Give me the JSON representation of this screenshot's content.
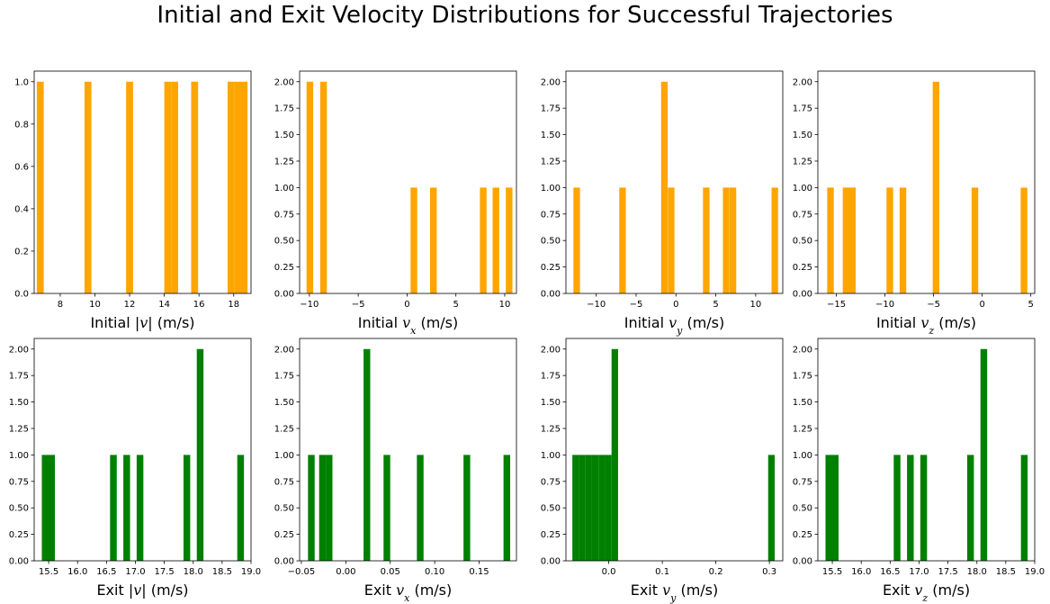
{
  "suptitle": "Initial and Exit Velocity Distributions for Successful Trajectories",
  "chart_data": [
    {
      "type": "bar",
      "color": "#FFA500",
      "xlabel": "Initial |v| (m/s)",
      "xlabel_parts": [
        [
          "Initial |",
          false
        ],
        [
          "v",
          true
        ],
        [
          "| (m/s)",
          false
        ]
      ],
      "xlim": [
        6.5,
        19.0
      ],
      "ylim": [
        0,
        1.05
      ],
      "xticks": [
        8,
        10,
        12,
        14,
        16,
        18
      ],
      "xtick_labels": [
        "8",
        "10",
        "12",
        "14",
        "16",
        "18"
      ],
      "yticks": [
        0,
        0.2,
        0.4,
        0.6,
        0.8,
        1.0
      ],
      "ytick_labels": [
        "0.0",
        "0.2",
        "0.4",
        "0.6",
        "0.8",
        "1.0"
      ],
      "bin_width": 0.4,
      "bins": [
        [
          6.85,
          1
        ],
        [
          9.6,
          1
        ],
        [
          12.0,
          1
        ],
        [
          14.2,
          1
        ],
        [
          14.6,
          1
        ],
        [
          15.75,
          1
        ],
        [
          17.85,
          1
        ],
        [
          18.25,
          1
        ],
        [
          18.6,
          1
        ]
      ]
    },
    {
      "type": "bar",
      "color": "#FFA500",
      "xlabel": "Initial vx (m/s)",
      "xlabel_parts": [
        [
          "Initial ",
          false
        ],
        [
          "v",
          true
        ],
        [
          "x",
          "sub"
        ],
        [
          " (m/s)",
          false
        ]
      ],
      "xlim": [
        -11.0,
        11.2
      ],
      "ylim": [
        0,
        2.1
      ],
      "xticks": [
        -10,
        -5,
        0,
        5,
        10
      ],
      "xtick_labels": [
        "−10",
        "−5",
        "0",
        "5",
        "10"
      ],
      "yticks": [
        0,
        0.25,
        0.5,
        0.75,
        1.0,
        1.25,
        1.5,
        1.75,
        2.0
      ],
      "ytick_labels": [
        "0.00",
        "0.25",
        "0.50",
        "0.75",
        "1.00",
        "1.25",
        "1.50",
        "1.75",
        "2.00"
      ],
      "bin_width": 0.68,
      "bins": [
        [
          -9.95,
          2
        ],
        [
          -8.55,
          2
        ],
        [
          0.7,
          1
        ],
        [
          2.7,
          1
        ],
        [
          7.8,
          1
        ],
        [
          9.1,
          1
        ],
        [
          10.45,
          1
        ]
      ]
    },
    {
      "type": "bar",
      "color": "#FFA500",
      "xlabel": "Initial vy (m/s)",
      "xlabel_parts": [
        [
          "Initial ",
          false
        ],
        [
          "v",
          true
        ],
        [
          "y",
          "sub"
        ],
        [
          " (m/s)",
          false
        ]
      ],
      "xlim": [
        -13.8,
        13.4
      ],
      "ylim": [
        0,
        2.1
      ],
      "xticks": [
        -10,
        -5,
        0,
        5,
        10
      ],
      "xtick_labels": [
        "−10",
        "−5",
        "0",
        "5",
        "10"
      ],
      "yticks": [
        0,
        0.25,
        0.5,
        0.75,
        1.0,
        1.25,
        1.5,
        1.75,
        2.0
      ],
      "ytick_labels": [
        "0.00",
        "0.25",
        "0.50",
        "0.75",
        "1.00",
        "1.25",
        "1.50",
        "1.75",
        "2.00"
      ],
      "bin_width": 0.82,
      "bins": [
        [
          -12.45,
          1
        ],
        [
          -6.7,
          1
        ],
        [
          -1.45,
          2
        ],
        [
          -0.6,
          1
        ],
        [
          3.8,
          1
        ],
        [
          6.3,
          1
        ],
        [
          7.15,
          1
        ],
        [
          12.4,
          1
        ]
      ]
    },
    {
      "type": "bar",
      "color": "#FFA500",
      "xlabel": "Initial vz (m/s)",
      "xlabel_parts": [
        [
          "Initial ",
          false
        ],
        [
          "v",
          true
        ],
        [
          "z",
          "sub"
        ],
        [
          " (m/s)",
          false
        ]
      ],
      "xlim": [
        -16.9,
        5.4
      ],
      "ylim": [
        0,
        2.1
      ],
      "xticks": [
        -15,
        -10,
        -5,
        0,
        5
      ],
      "xtick_labels": [
        "−15",
        "−10",
        "−5",
        "0",
        "5"
      ],
      "yticks": [
        0,
        0.25,
        0.5,
        0.75,
        1.0,
        1.25,
        1.5,
        1.75,
        2.0
      ],
      "ytick_labels": [
        "0.00",
        "0.25",
        "0.50",
        "0.75",
        "1.00",
        "1.25",
        "1.50",
        "1.75",
        "2.00"
      ],
      "bin_width": 0.68,
      "bins": [
        [
          -15.6,
          1
        ],
        [
          -14.0,
          1
        ],
        [
          -13.35,
          1
        ],
        [
          -9.5,
          1
        ],
        [
          -8.15,
          1
        ],
        [
          -4.75,
          2
        ],
        [
          -0.75,
          1
        ],
        [
          4.3,
          1
        ]
      ]
    },
    {
      "type": "bar",
      "color": "#008000",
      "xlabel": "Exit |v| (m/s)",
      "xlabel_parts": [
        [
          "Exit |",
          false
        ],
        [
          "v",
          true
        ],
        [
          "| (m/s)",
          false
        ]
      ],
      "xlim": [
        15.25,
        19.0
      ],
      "ylim": [
        0,
        2.1
      ],
      "xticks": [
        15.5,
        16.0,
        16.5,
        17.0,
        17.5,
        18.0,
        18.5,
        19.0
      ],
      "xtick_labels": [
        "15.5",
        "16.0",
        "16.5",
        "17.0",
        "17.5",
        "18.0",
        "18.5",
        "19.0"
      ],
      "yticks": [
        0,
        0.25,
        0.5,
        0.75,
        1.0,
        1.25,
        1.5,
        1.75,
        2.0
      ],
      "ytick_labels": [
        "0.00",
        "0.25",
        "0.50",
        "0.75",
        "1.00",
        "1.25",
        "1.50",
        "1.75",
        "2.00"
      ],
      "bin_width": 0.116,
      "bins": [
        [
          15.44,
          1
        ],
        [
          15.55,
          1
        ],
        [
          16.62,
          1
        ],
        [
          16.85,
          1
        ],
        [
          17.08,
          1
        ],
        [
          17.89,
          1
        ],
        [
          18.12,
          2
        ],
        [
          18.82,
          1
        ]
      ]
    },
    {
      "type": "bar",
      "color": "#008000",
      "xlabel": "Exit vx (m/s)",
      "xlabel_parts": [
        [
          "Exit ",
          false
        ],
        [
          "v",
          true
        ],
        [
          "x",
          "sub"
        ],
        [
          " (m/s)",
          false
        ]
      ],
      "xlim": [
        -0.052,
        0.192
      ],
      "ylim": [
        0,
        2.1
      ],
      "xticks": [
        -0.05,
        0.0,
        0.05,
        0.1,
        0.15
      ],
      "xtick_labels": [
        "−0.05",
        "0.00",
        "0.05",
        "0.10",
        "0.15"
      ],
      "yticks": [
        0,
        0.25,
        0.5,
        0.75,
        1.0,
        1.25,
        1.5,
        1.75,
        2.0
      ],
      "ytick_labels": [
        "0.00",
        "0.25",
        "0.50",
        "0.75",
        "1.00",
        "1.25",
        "1.50",
        "1.75",
        "2.00"
      ],
      "bin_width": 0.0075,
      "bins": [
        [
          -0.0388,
          1
        ],
        [
          -0.0263,
          1
        ],
        [
          -0.0188,
          1
        ],
        [
          0.0237,
          2
        ],
        [
          0.0462,
          1
        ],
        [
          0.0837,
          1
        ],
        [
          0.1362,
          1
        ],
        [
          0.1812,
          1
        ]
      ]
    },
    {
      "type": "bar",
      "color": "#008000",
      "xlabel": "Exit vy (m/s)",
      "xlabel_parts": [
        [
          "Exit ",
          false
        ],
        [
          "v",
          true
        ],
        [
          "y",
          "sub"
        ],
        [
          " (m/s)",
          false
        ]
      ],
      "xlim": [
        -0.08,
        0.325
      ],
      "ylim": [
        0,
        2.1
      ],
      "xticks": [
        0.0,
        0.1,
        0.2,
        0.3
      ],
      "xtick_labels": [
        "0.0",
        "0.1",
        "0.2",
        "0.3"
      ],
      "yticks": [
        0,
        0.25,
        0.5,
        0.75,
        1.0,
        1.25,
        1.5,
        1.75,
        2.0
      ],
      "ytick_labels": [
        "0.00",
        "0.25",
        "0.50",
        "0.75",
        "1.00",
        "1.25",
        "1.50",
        "1.75",
        "2.00"
      ],
      "bin_width": 0.0122,
      "bins": [
        [
          -0.0619,
          1
        ],
        [
          -0.0497,
          1
        ],
        [
          -0.0375,
          1
        ],
        [
          -0.0253,
          1
        ],
        [
          -0.0131,
          1
        ],
        [
          -0.0009,
          1
        ],
        [
          0.0113,
          2
        ],
        [
          0.3038,
          1
        ]
      ]
    },
    {
      "type": "bar",
      "color": "#008000",
      "xlabel": "Exit vz (m/s)",
      "xlabel_parts": [
        [
          "Exit ",
          false
        ],
        [
          "v",
          true
        ],
        [
          "z",
          "sub"
        ],
        [
          " (m/s)",
          false
        ]
      ],
      "xlim": [
        15.25,
        19.0
      ],
      "ylim": [
        0,
        2.1
      ],
      "xticks": [
        15.5,
        16.0,
        16.5,
        17.0,
        17.5,
        18.0,
        18.5,
        19.0
      ],
      "xtick_labels": [
        "15.5",
        "16.0",
        "16.5",
        "17.0",
        "17.5",
        "18.0",
        "18.5",
        "19.0"
      ],
      "yticks": [
        0,
        0.25,
        0.5,
        0.75,
        1.0,
        1.25,
        1.5,
        1.75,
        2.0
      ],
      "ytick_labels": [
        "0.00",
        "0.25",
        "0.50",
        "0.75",
        "1.00",
        "1.25",
        "1.50",
        "1.75",
        "2.00"
      ],
      "bin_width": 0.116,
      "bins": [
        [
          15.44,
          1
        ],
        [
          15.55,
          1
        ],
        [
          16.62,
          1
        ],
        [
          16.85,
          1
        ],
        [
          17.08,
          1
        ],
        [
          17.89,
          1
        ],
        [
          18.12,
          2
        ],
        [
          18.82,
          1
        ]
      ]
    }
  ]
}
